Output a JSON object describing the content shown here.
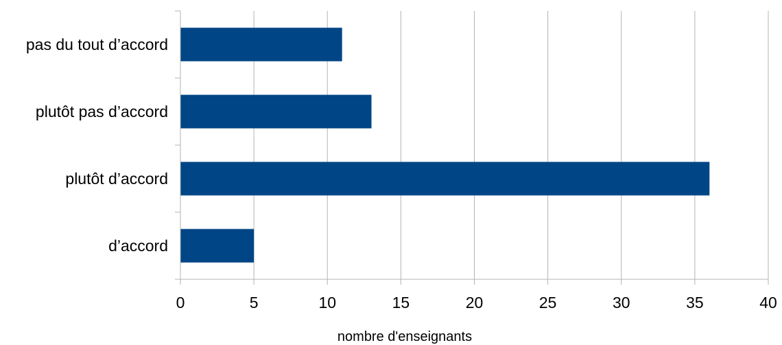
{
  "chart_data": {
    "type": "bar",
    "orientation": "horizontal",
    "categories": [
      "d’accord",
      "plutôt d’accord",
      "plutôt pas d’accord",
      "pas du tout d’accord"
    ],
    "values": [
      5,
      36,
      13,
      11
    ],
    "xlabel": "nombre d'enseignants",
    "ylabel": "",
    "xlim": [
      0,
      40
    ],
    "x_ticks": [
      0,
      5,
      10,
      15,
      20,
      25,
      30,
      35,
      40
    ],
    "grid": "vertical",
    "legend": "none",
    "bar_color": "#004586",
    "grid_color": "#b3b3b3"
  }
}
